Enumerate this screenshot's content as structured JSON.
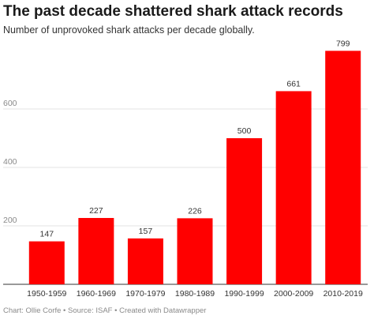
{
  "title": "The past decade shattered shark attack records",
  "subtitle": "Number of unprovoked shark attacks per decade globally.",
  "footer": "Chart: Ollie Corfe • Source: ISAF • Created with Datawrapper",
  "colors": {
    "bar": "#ff0000",
    "grid": "#e3e3e3",
    "axis": "#333333"
  },
  "chart_data": {
    "type": "bar",
    "categories": [
      "1950-1959",
      "1960-1969",
      "1970-1979",
      "1980-1989",
      "1990-1999",
      "2000-2009",
      "2010-2019"
    ],
    "values": [
      147,
      227,
      157,
      226,
      500,
      661,
      799
    ],
    "yticks": [
      200,
      400,
      600
    ],
    "ylim": [
      0,
      800
    ],
    "grid": true,
    "title": "The past decade shattered shark attack records",
    "subtitle": "Number of unprovoked shark attacks per decade globally."
  }
}
